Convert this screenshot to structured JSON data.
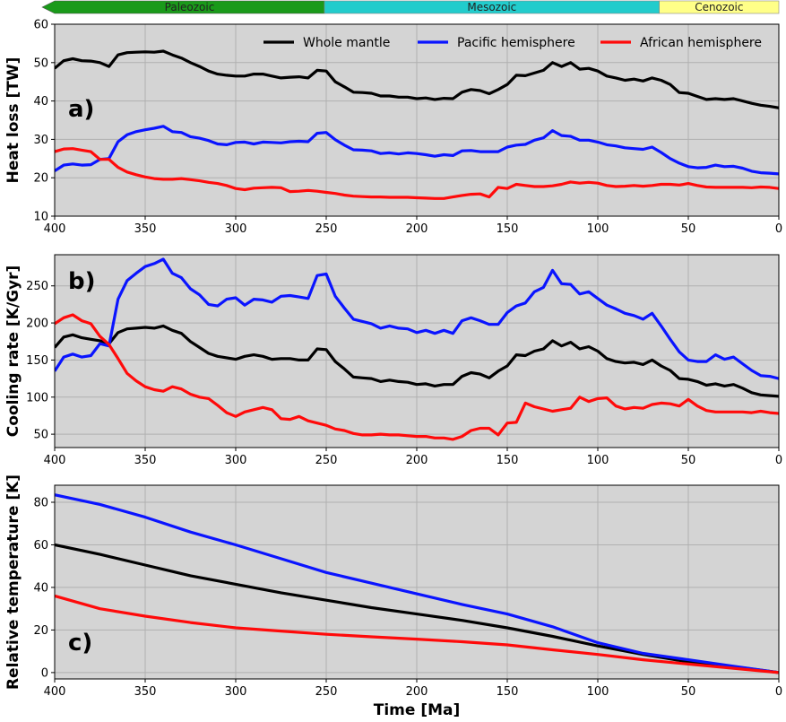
{
  "eras": [
    {
      "name": "Paleozoic",
      "start": 400,
      "end": 251,
      "color": "#1a9a1a"
    },
    {
      "name": "Mesozoic",
      "start": 251,
      "end": 66,
      "color": "#22cccc"
    },
    {
      "name": "Cenozoic",
      "start": 66,
      "end": 0,
      "color": "#ffff88"
    }
  ],
  "xaxis": {
    "label": "Time [Ma]",
    "range": [
      400,
      0
    ],
    "ticks": [
      400,
      350,
      300,
      250,
      200,
      150,
      100,
      50,
      0
    ]
  },
  "legend": {
    "placement": "top-right",
    "entries": [
      "Whole mantle",
      "Pacific hemisphere",
      "African hemisphere"
    ]
  },
  "colors": {
    "whole": "#000000",
    "pacific": "#0a14ff",
    "african": "#ff0a0a",
    "plot_bg": "#d4d4d4",
    "grid": "#b0b0b0"
  },
  "chart_data": [
    {
      "type": "line",
      "panel_label": "a)",
      "ylabel": "Heat loss [TW]",
      "ylim": [
        10,
        60
      ],
      "yticks": [
        10,
        20,
        30,
        40,
        50,
        60
      ],
      "grid": true,
      "x": [
        400,
        395,
        390,
        385,
        380,
        375,
        370,
        365,
        360,
        355,
        350,
        345,
        340,
        335,
        330,
        325,
        320,
        315,
        310,
        305,
        300,
        295,
        290,
        285,
        280,
        275,
        270,
        265,
        260,
        255,
        250,
        245,
        240,
        235,
        230,
        225,
        220,
        215,
        210,
        205,
        200,
        195,
        190,
        185,
        180,
        175,
        170,
        165,
        160,
        155,
        150,
        145,
        140,
        135,
        130,
        125,
        120,
        115,
        110,
        105,
        100,
        95,
        90,
        85,
        80,
        75,
        70,
        65,
        60,
        55,
        50,
        45,
        40,
        35,
        30,
        25,
        20,
        15,
        10,
        5,
        0
      ],
      "series": [
        {
          "name": "Whole mantle",
          "values": [
            48.5,
            50.5,
            51,
            50.5,
            50.4,
            50,
            49,
            52,
            52.6,
            52.7,
            52.8,
            52.7,
            53,
            52,
            51.2,
            50,
            49,
            47.8,
            47,
            46.7,
            46.5,
            46.5,
            47,
            47,
            46.5,
            46,
            46.2,
            46.3,
            46,
            48,
            47.8,
            45,
            43.7,
            42.3,
            42.2,
            42,
            41.3,
            41.3,
            41,
            41,
            40.6,
            40.8,
            40.4,
            40.7,
            40.6,
            42.3,
            43,
            42.7,
            41.9,
            43,
            44.3,
            46.7,
            46.6,
            47.3,
            48,
            50,
            49,
            50,
            48.3,
            48.5,
            47.8,
            46.5,
            46,
            45.4,
            45.7,
            45.2,
            46,
            45.4,
            44.3,
            42.2,
            42,
            41.2,
            40.4,
            40.6,
            40.4,
            40.6,
            40,
            39.4,
            38.9,
            38.6,
            38.2
          ]
        },
        {
          "name": "Pacific hemisphere",
          "values": [
            21.8,
            23.3,
            23.6,
            23.3,
            23.4,
            24.8,
            25,
            29.4,
            31.2,
            32,
            32.5,
            32.9,
            33.4,
            32,
            31.8,
            30.7,
            30.3,
            29.7,
            28.8,
            28.6,
            29.2,
            29.3,
            28.8,
            29.3,
            29.2,
            29.1,
            29.4,
            29.5,
            29.4,
            31.6,
            31.8,
            29.9,
            28.5,
            27.3,
            27.2,
            27,
            26.3,
            26.5,
            26.2,
            26.5,
            26.3,
            26,
            25.6,
            26,
            25.8,
            27,
            27.1,
            26.8,
            26.8,
            26.8,
            28,
            28.5,
            28.7,
            29.8,
            30.4,
            32.3,
            31,
            30.8,
            29.8,
            29.8,
            29.3,
            28.6,
            28.3,
            27.8,
            27.6,
            27.4,
            28,
            26.6,
            25,
            23.8,
            22.9,
            22.6,
            22.7,
            23.3,
            22.9,
            23,
            22.5,
            21.7,
            21.3,
            21.2,
            21
          ]
        },
        {
          "name": "African hemisphere",
          "values": [
            26.8,
            27.5,
            27.6,
            27.2,
            26.8,
            24.8,
            24.8,
            22.7,
            21.5,
            20.8,
            20.2,
            19.8,
            19.6,
            19.6,
            19.8,
            19.5,
            19.2,
            18.8,
            18.5,
            18,
            17.2,
            16.9,
            17.3,
            17.4,
            17.5,
            17.4,
            16.4,
            16.5,
            16.7,
            16.5,
            16.2,
            15.9,
            15.5,
            15.2,
            15.1,
            15,
            15,
            14.9,
            14.9,
            14.9,
            14.8,
            14.7,
            14.6,
            14.6,
            15,
            15.4,
            15.7,
            15.8,
            15,
            17.5,
            17.2,
            18.3,
            18,
            17.7,
            17.7,
            17.9,
            18.3,
            18.9,
            18.6,
            18.8,
            18.6,
            18,
            17.7,
            17.8,
            18,
            17.8,
            18,
            18.3,
            18.3,
            18.1,
            18.5,
            18,
            17.6,
            17.5,
            17.5,
            17.5,
            17.5,
            17.4,
            17.6,
            17.5,
            17.2
          ]
        }
      ]
    },
    {
      "type": "line",
      "panel_label": "b)",
      "ylabel": "Cooling rate [K/Gyr]",
      "ylim": [
        32,
        292
      ],
      "yticks": [
        50,
        100,
        150,
        200,
        250
      ],
      "grid": true,
      "x": [
        400,
        395,
        390,
        385,
        380,
        375,
        370,
        365,
        360,
        355,
        350,
        345,
        340,
        335,
        330,
        325,
        320,
        315,
        310,
        305,
        300,
        295,
        290,
        285,
        280,
        275,
        270,
        265,
        260,
        255,
        250,
        245,
        240,
        235,
        230,
        225,
        220,
        215,
        210,
        205,
        200,
        195,
        190,
        185,
        180,
        175,
        170,
        165,
        160,
        155,
        150,
        145,
        140,
        135,
        130,
        125,
        120,
        115,
        110,
        105,
        100,
        95,
        90,
        85,
        80,
        75,
        70,
        65,
        60,
        55,
        50,
        45,
        40,
        35,
        30,
        25,
        20,
        15,
        10,
        5,
        0
      ],
      "series": [
        {
          "name": "Whole mantle",
          "values": [
            167,
            181,
            184,
            180,
            178,
            176,
            172,
            187,
            192,
            193,
            194,
            193,
            196,
            190,
            186,
            175,
            167,
            159,
            155,
            153,
            151,
            155,
            157,
            155,
            151,
            152,
            152,
            150,
            150,
            165,
            164,
            148,
            138,
            127,
            126,
            125,
            121,
            123,
            121,
            120,
            117,
            118,
            115,
            117,
            117,
            128,
            133,
            131,
            126,
            135,
            142,
            157,
            156,
            162,
            165,
            176,
            169,
            174,
            165,
            168,
            162,
            152,
            148,
            146,
            147,
            144,
            150,
            142,
            136,
            125,
            124,
            121,
            116,
            118,
            115,
            117,
            112,
            106,
            103,
            102,
            101
          ]
        },
        {
          "name": "Pacific hemisphere",
          "values": [
            135,
            154,
            158,
            154,
            156,
            172,
            169,
            232,
            257,
            267,
            276,
            280,
            286,
            267,
            261,
            246,
            238,
            225,
            223,
            232,
            234,
            224,
            232,
            231,
            228,
            236,
            237,
            235,
            233,
            264,
            266,
            236,
            220,
            205,
            202,
            199,
            193,
            196,
            193,
            192,
            187,
            190,
            186,
            190,
            186,
            203,
            207,
            203,
            198,
            198,
            214,
            223,
            227,
            242,
            248,
            271,
            253,
            252,
            239,
            242,
            233,
            224,
            219,
            213,
            210,
            205,
            213,
            196,
            178,
            161,
            150,
            148,
            148,
            157,
            151,
            154,
            145,
            136,
            129,
            128,
            125
          ]
        },
        {
          "name": "African hemisphere",
          "values": [
            199,
            207,
            211,
            203,
            199,
            182,
            171,
            152,
            132,
            122,
            114,
            110,
            108,
            114,
            111,
            104,
            100,
            98,
            89,
            79,
            74,
            80,
            83,
            86,
            83,
            71,
            70,
            74,
            68,
            65,
            62,
            57,
            55,
            51,
            49,
            49,
            50,
            49,
            49,
            48,
            47,
            47,
            45,
            45,
            43,
            47,
            55,
            58,
            58,
            49,
            65,
            66,
            92,
            87,
            84,
            81,
            83,
            85,
            100,
            94,
            98,
            99,
            88,
            84,
            86,
            85,
            90,
            92,
            91,
            88,
            97,
            88,
            82,
            80,
            80,
            80,
            80,
            79,
            81,
            79,
            78
          ]
        }
      ]
    },
    {
      "type": "line",
      "panel_label": "c)",
      "ylabel": "Relative temperature [K]",
      "ylim": [
        -3,
        88
      ],
      "yticks": [
        0,
        20,
        40,
        60,
        80
      ],
      "grid": true,
      "x": [
        400,
        375,
        350,
        325,
        300,
        275,
        250,
        225,
        200,
        175,
        150,
        125,
        100,
        75,
        50,
        25,
        0
      ],
      "series": [
        {
          "name": "Whole mantle",
          "values": [
            60,
            55.5,
            50.5,
            45.5,
            41.5,
            37.5,
            34,
            30.5,
            27.5,
            24.5,
            21,
            17,
            12.5,
            8.5,
            5,
            2.8,
            0
          ]
        },
        {
          "name": "Pacific hemisphere",
          "values": [
            83.5,
            79,
            73,
            66,
            60,
            53.5,
            47,
            42,
            37,
            32,
            27.5,
            21.5,
            14,
            9,
            6,
            3,
            0
          ]
        },
        {
          "name": "African hemisphere",
          "values": [
            36,
            30,
            26.5,
            23.5,
            21,
            19.5,
            18,
            16.8,
            15.7,
            14.5,
            13,
            10.7,
            8.5,
            6,
            4,
            2,
            0
          ]
        }
      ]
    }
  ]
}
